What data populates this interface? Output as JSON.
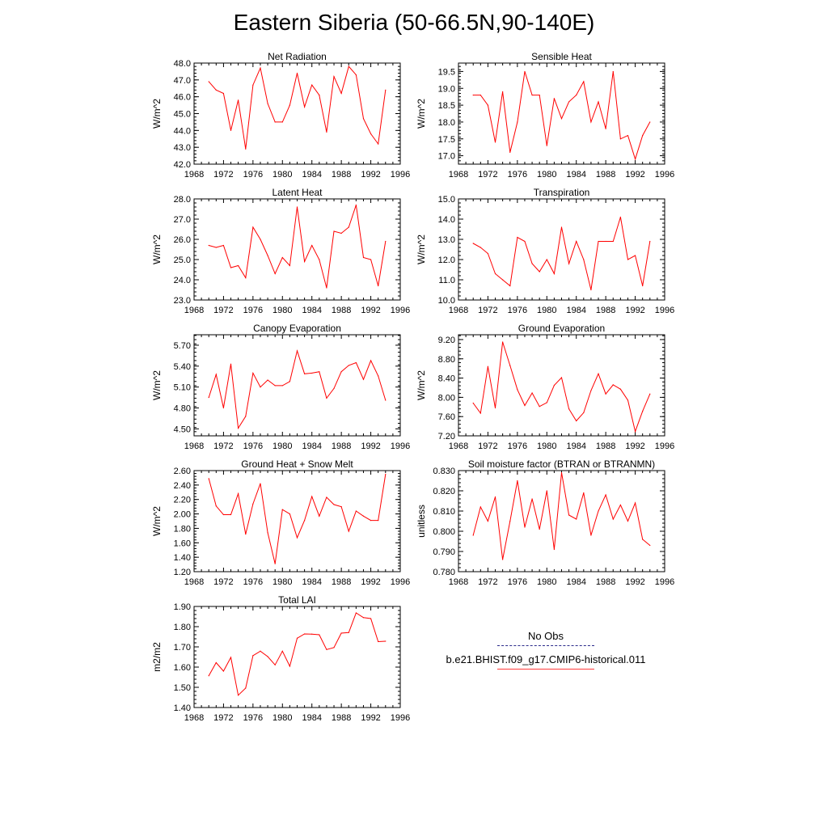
{
  "title": "Eastern Siberia (50-66.5N,90-140E)",
  "legend": {
    "obs_label": "No Obs",
    "model_label": "b.e21.BHIST.f09_g17.CMIP6-historical.011",
    "obs_color": "#2a2a8a",
    "model_color": "#ff0000"
  },
  "chart_data": [
    {
      "type": "line",
      "title": "Net Radiation",
      "ylabel": "W/m^2",
      "xlim": [
        1968,
        1996
      ],
      "x_ticks": [
        "1968",
        "1972",
        "1976",
        "1980",
        "1984",
        "1988",
        "1992",
        "1996"
      ],
      "ylim": [
        42.0,
        48.0
      ],
      "y_ticks": [
        "42.0",
        "43.0",
        "44.0",
        "45.0",
        "46.0",
        "47.0",
        "48.0"
      ],
      "series": [
        {
          "x": [
            1970,
            1971,
            1972,
            1973,
            1974,
            1975,
            1976,
            1977,
            1978,
            1979,
            1980,
            1981,
            1982,
            1983,
            1984,
            1985,
            1986,
            1987,
            1988,
            1989,
            1990,
            1991,
            1992,
            1993,
            1994
          ],
          "values": [
            46.9,
            46.4,
            46.2,
            44.0,
            45.8,
            42.9,
            46.7,
            47.7,
            45.6,
            44.5,
            44.5,
            45.5,
            47.4,
            45.4,
            46.7,
            46.1,
            43.9,
            47.2,
            46.2,
            47.8,
            47.3,
            44.7,
            43.8,
            43.2,
            46.4
          ]
        }
      ]
    },
    {
      "type": "line",
      "title": "Sensible Heat",
      "ylabel": "W/m^2",
      "xlim": [
        1968,
        1996
      ],
      "x_ticks": [
        "1968",
        "1972",
        "1976",
        "1980",
        "1984",
        "1988",
        "1992",
        "1996"
      ],
      "ylim": [
        16.75,
        19.75
      ],
      "y_ticks": [
        "17.0",
        "17.5",
        "18.0",
        "18.5",
        "19.0",
        "19.5"
      ],
      "y_tick_values": [
        17.0,
        17.5,
        18.0,
        18.5,
        19.0,
        19.5
      ],
      "series": [
        {
          "x": [
            1970,
            1971,
            1972,
            1973,
            1974,
            1975,
            1976,
            1977,
            1978,
            1979,
            1980,
            1981,
            1982,
            1983,
            1984,
            1985,
            1986,
            1987,
            1988,
            1989,
            1990,
            1991,
            1992,
            1993,
            1994
          ],
          "values": [
            18.8,
            18.8,
            18.5,
            17.4,
            18.9,
            17.1,
            18.0,
            19.5,
            18.8,
            18.8,
            17.3,
            18.7,
            18.1,
            18.6,
            18.8,
            19.2,
            18.0,
            18.6,
            17.8,
            19.5,
            17.5,
            17.6,
            16.9,
            17.6,
            18.0
          ]
        }
      ]
    },
    {
      "type": "line",
      "title": "Latent Heat",
      "ylabel": "W/m^2",
      "xlim": [
        1968,
        1996
      ],
      "x_ticks": [
        "1968",
        "1972",
        "1976",
        "1980",
        "1984",
        "1988",
        "1992",
        "1996"
      ],
      "ylim": [
        23.0,
        28.0
      ],
      "y_ticks": [
        "23.0",
        "24.0",
        "25.0",
        "26.0",
        "27.0",
        "28.0"
      ],
      "series": [
        {
          "x": [
            1970,
            1971,
            1972,
            1973,
            1974,
            1975,
            1976,
            1977,
            1978,
            1979,
            1980,
            1981,
            1982,
            1983,
            1984,
            1985,
            1986,
            1987,
            1988,
            1989,
            1990,
            1991,
            1992,
            1993,
            1994
          ],
          "values": [
            25.7,
            25.6,
            25.7,
            24.6,
            24.7,
            24.1,
            26.6,
            26.0,
            25.2,
            24.3,
            25.1,
            24.7,
            27.6,
            24.9,
            25.7,
            25.0,
            23.6,
            26.4,
            26.3,
            26.6,
            27.7,
            25.1,
            25.0,
            23.7,
            25.9
          ]
        }
      ]
    },
    {
      "type": "line",
      "title": "Transpiration",
      "ylabel": "W/m^2",
      "xlim": [
        1968,
        1996
      ],
      "x_ticks": [
        "1968",
        "1972",
        "1976",
        "1980",
        "1984",
        "1988",
        "1992",
        "1996"
      ],
      "ylim": [
        10.0,
        15.0
      ],
      "y_ticks": [
        "10.0",
        "11.0",
        "12.0",
        "13.0",
        "14.0",
        "15.0"
      ],
      "series": [
        {
          "x": [
            1970,
            1971,
            1972,
            1973,
            1974,
            1975,
            1976,
            1977,
            1978,
            1979,
            1980,
            1981,
            1982,
            1983,
            1984,
            1985,
            1986,
            1987,
            1988,
            1989,
            1990,
            1991,
            1992,
            1993,
            1994
          ],
          "values": [
            12.8,
            12.6,
            12.3,
            11.3,
            11.0,
            10.7,
            13.1,
            12.9,
            11.8,
            11.4,
            12.0,
            11.3,
            13.6,
            11.8,
            12.9,
            12.0,
            10.5,
            12.9,
            12.9,
            12.9,
            14.1,
            12.0,
            12.2,
            10.7,
            12.9
          ]
        }
      ]
    },
    {
      "type": "line",
      "title": "Canopy Evaporation",
      "ylabel": "W/m^2",
      "xlim": [
        1968,
        1996
      ],
      "x_ticks": [
        "1968",
        "1972",
        "1976",
        "1980",
        "1984",
        "1988",
        "1992",
        "1996"
      ],
      "ylim": [
        4.4,
        5.85
      ],
      "y_ticks": [
        "4.50",
        "4.80",
        "5.10",
        "5.40",
        "5.70"
      ],
      "y_tick_values": [
        4.5,
        4.8,
        5.1,
        5.4,
        5.7
      ],
      "series": [
        {
          "x": [
            1970,
            1971,
            1972,
            1973,
            1974,
            1975,
            1976,
            1977,
            1978,
            1979,
            1980,
            1981,
            1982,
            1983,
            1984,
            1985,
            1986,
            1987,
            1988,
            1989,
            1990,
            1991,
            1992,
            1993,
            1994
          ],
          "values": [
            4.95,
            5.28,
            4.8,
            5.43,
            4.51,
            4.68,
            5.3,
            5.1,
            5.2,
            5.12,
            5.12,
            5.18,
            5.62,
            5.29,
            5.3,
            5.32,
            4.94,
            5.08,
            5.32,
            5.41,
            5.45,
            5.21,
            5.48,
            5.26,
            4.91
          ]
        }
      ]
    },
    {
      "type": "line",
      "title": "Ground Evaporation",
      "ylabel": "W/m^2",
      "xlim": [
        1968,
        1996
      ],
      "x_ticks": [
        "1968",
        "1972",
        "1976",
        "1980",
        "1984",
        "1988",
        "1992",
        "1996"
      ],
      "ylim": [
        7.2,
        9.3
      ],
      "y_ticks": [
        "7.20",
        "7.60",
        "8.00",
        "8.40",
        "8.80",
        "9.20"
      ],
      "y_tick_values": [
        7.2,
        7.6,
        8.0,
        8.4,
        8.8,
        9.2
      ],
      "series": [
        {
          "x": [
            1970,
            1971,
            1972,
            1973,
            1974,
            1975,
            1976,
            1977,
            1978,
            1979,
            1980,
            1981,
            1982,
            1983,
            1984,
            1985,
            1986,
            1987,
            1988,
            1989,
            1990,
            1991,
            1992,
            1993,
            1994
          ],
          "values": [
            7.88,
            7.67,
            8.64,
            7.78,
            9.15,
            8.66,
            8.16,
            7.83,
            8.09,
            7.81,
            7.89,
            8.25,
            8.41,
            7.76,
            7.51,
            7.68,
            8.14,
            8.49,
            8.07,
            8.26,
            8.17,
            7.94,
            7.29,
            7.71,
            8.07
          ]
        }
      ]
    },
    {
      "type": "line",
      "title": "Ground Heat + Snow Melt",
      "ylabel": "W/m^2",
      "xlim": [
        1968,
        1996
      ],
      "x_ticks": [
        "1968",
        "1972",
        "1976",
        "1980",
        "1984",
        "1988",
        "1992",
        "1996"
      ],
      "ylim": [
        1.2,
        2.6
      ],
      "y_ticks": [
        "1.20",
        "1.40",
        "1.60",
        "1.80",
        "2.00",
        "2.20",
        "2.40",
        "2.60"
      ],
      "y_tick_values": [
        1.2,
        1.4,
        1.6,
        1.8,
        2.0,
        2.2,
        2.4,
        2.6
      ],
      "series": [
        {
          "x": [
            1970,
            1971,
            1972,
            1973,
            1974,
            1975,
            1976,
            1977,
            1978,
            1979,
            1980,
            1981,
            1982,
            1983,
            1984,
            1985,
            1986,
            1987,
            1988,
            1989,
            1990,
            1991,
            1992,
            1993,
            1994
          ],
          "values": [
            2.49,
            2.11,
            1.99,
            1.99,
            2.28,
            1.72,
            2.14,
            2.42,
            1.74,
            1.31,
            2.06,
            2.0,
            1.67,
            1.91,
            2.24,
            1.97,
            2.23,
            2.13,
            2.1,
            1.76,
            2.04,
            1.97,
            1.91,
            1.91,
            2.55
          ]
        }
      ]
    },
    {
      "type": "line",
      "title": "Soil moisture factor (BTRAN or BTRANMN)",
      "ylabel": "unitless",
      "xlim": [
        1968,
        1996
      ],
      "x_ticks": [
        "1968",
        "1972",
        "1976",
        "1980",
        "1984",
        "1988",
        "1992",
        "1996"
      ],
      "ylim": [
        0.78,
        0.83
      ],
      "y_ticks": [
        "0.780",
        "0.790",
        "0.800",
        "0.810",
        "0.820",
        "0.830"
      ],
      "y_tick_values": [
        0.78,
        0.79,
        0.8,
        0.81,
        0.82,
        0.83
      ],
      "series": [
        {
          "x": [
            1970,
            1971,
            1972,
            1973,
            1974,
            1975,
            1976,
            1977,
            1978,
            1979,
            1980,
            1981,
            1982,
            1983,
            1984,
            1985,
            1986,
            1987,
            1988,
            1989,
            1990,
            1991,
            1992,
            1993,
            1994
          ],
          "values": [
            0.798,
            0.812,
            0.805,
            0.817,
            0.786,
            0.805,
            0.825,
            0.802,
            0.816,
            0.801,
            0.82,
            0.791,
            0.829,
            0.808,
            0.806,
            0.819,
            0.798,
            0.81,
            0.818,
            0.806,
            0.813,
            0.805,
            0.814,
            0.796,
            0.793
          ]
        }
      ]
    },
    {
      "type": "line",
      "title": "Total LAI",
      "ylabel": "m2/m2",
      "xlim": [
        1968,
        1996
      ],
      "x_ticks": [
        "1968",
        "1972",
        "1976",
        "1980",
        "1984",
        "1988",
        "1992",
        "1996"
      ],
      "ylim": [
        1.4,
        1.9
      ],
      "y_ticks": [
        "1.40",
        "1.50",
        "1.60",
        "1.70",
        "1.80",
        "1.90"
      ],
      "y_tick_values": [
        1.4,
        1.5,
        1.6,
        1.7,
        1.8,
        1.9
      ],
      "series": [
        {
          "x": [
            1970,
            1971,
            1972,
            1973,
            1974,
            1975,
            1976,
            1977,
            1978,
            1979,
            1980,
            1981,
            1982,
            1983,
            1984,
            1985,
            1986,
            1987,
            1988,
            1989,
            1990,
            1991,
            1992,
            1993,
            1994
          ],
          "values": [
            1.557,
            1.622,
            1.58,
            1.648,
            1.461,
            1.496,
            1.657,
            1.679,
            1.652,
            1.611,
            1.679,
            1.604,
            1.743,
            1.764,
            1.763,
            1.76,
            1.687,
            1.697,
            1.768,
            1.771,
            1.868,
            1.845,
            1.84,
            1.726,
            1.728
          ]
        }
      ]
    }
  ]
}
